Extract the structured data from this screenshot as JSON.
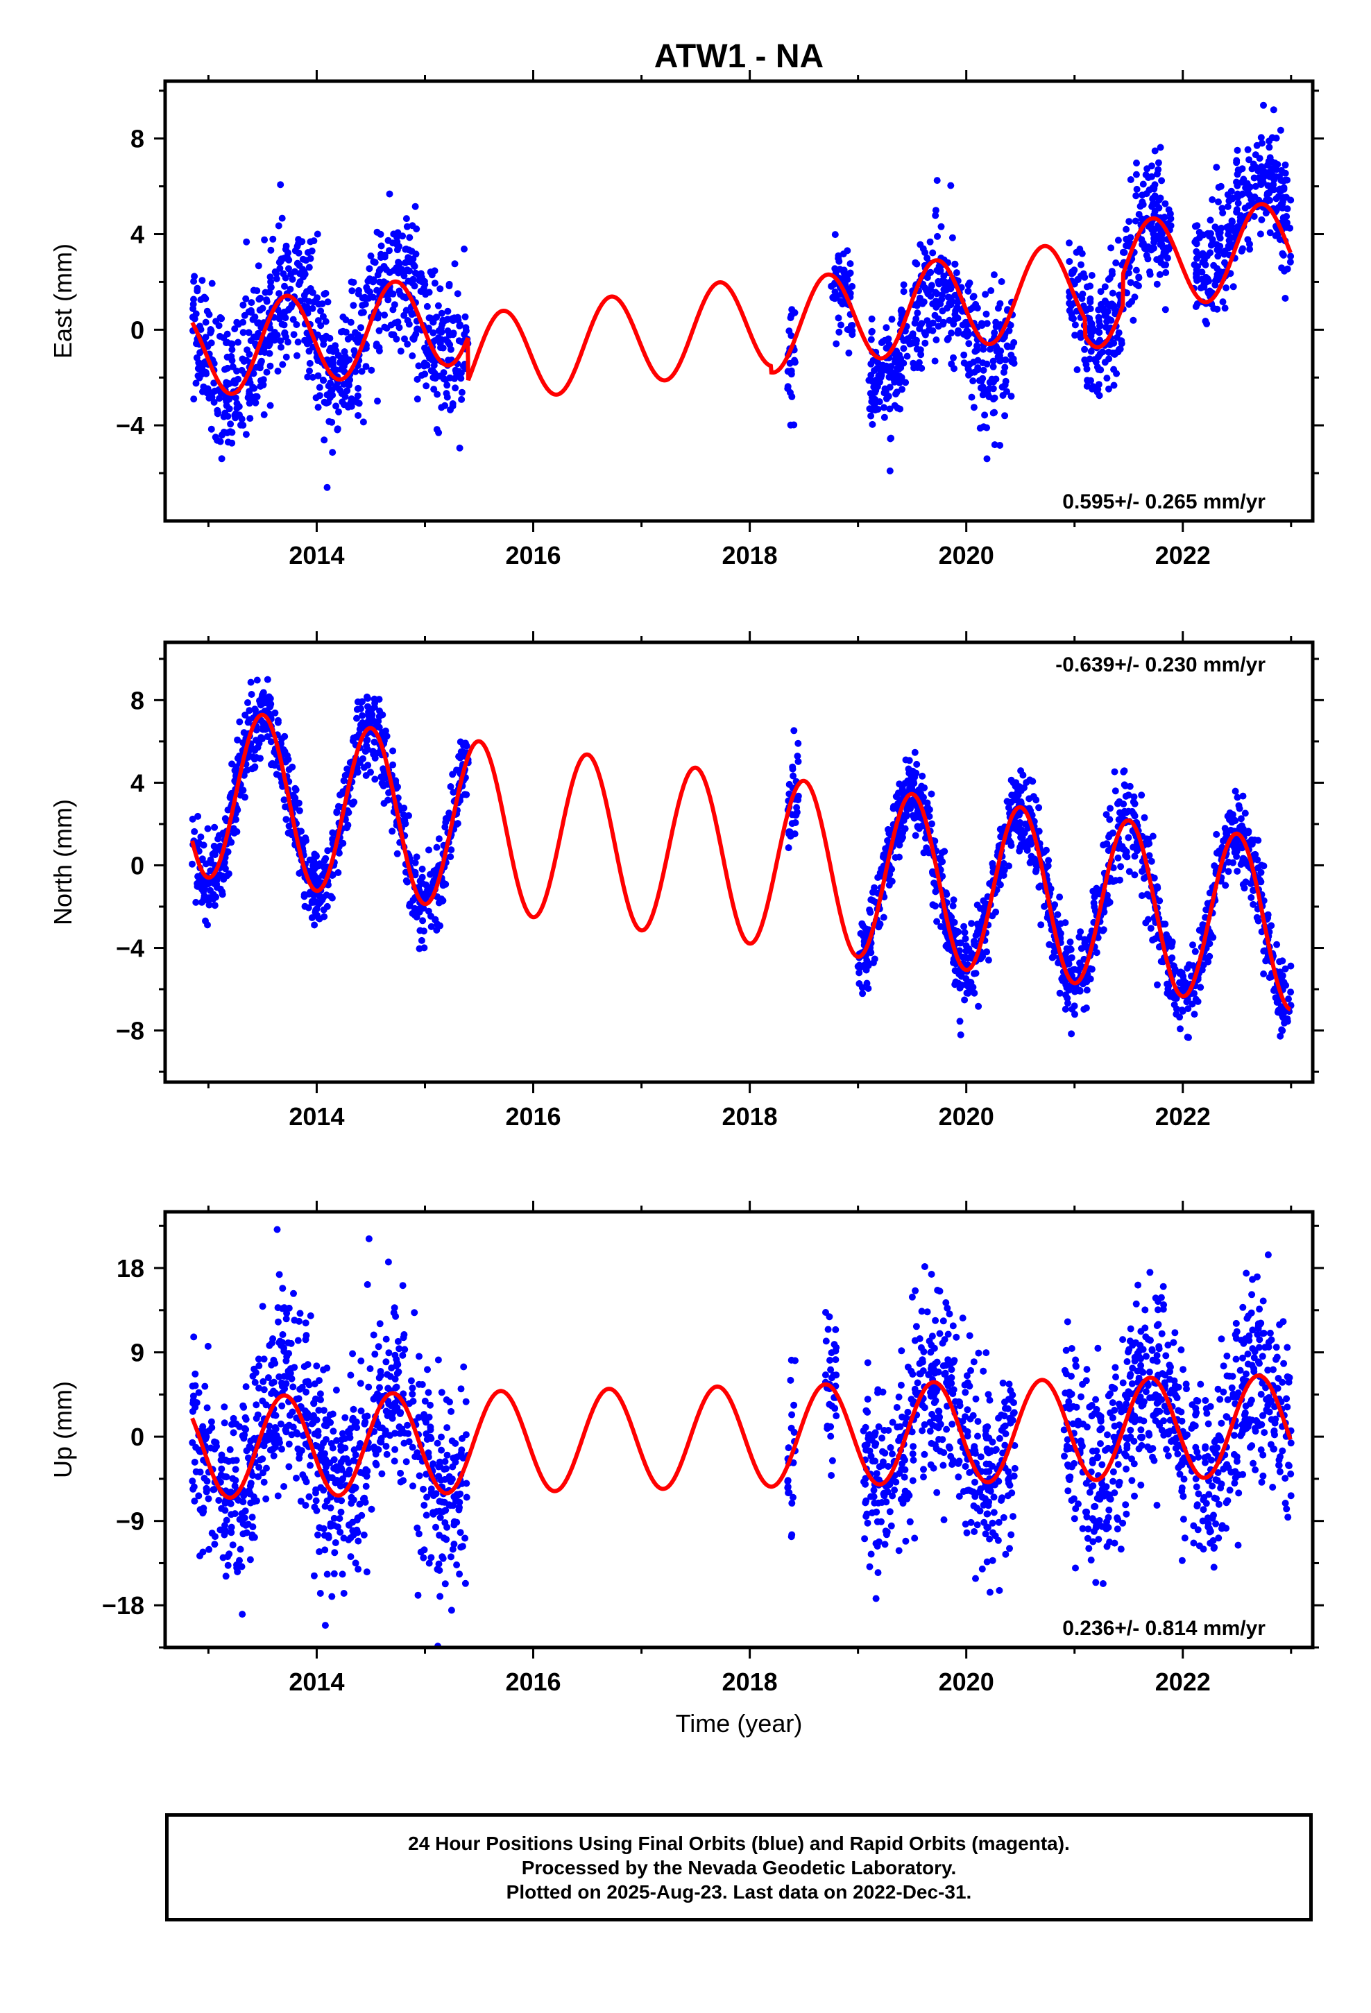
{
  "title": "ATW1 - NA",
  "xlabel": "Time (year)",
  "footer": {
    "line1": "24 Hour Positions Using Final Orbits (blue) and Rapid Orbits (magenta).",
    "line2": "Processed by the Nevada Geodetic Laboratory.",
    "line3": "Plotted on 2025-Aug-23. Last data on 2022-Dec-31."
  },
  "chart_data": [
    {
      "type": "scatter",
      "ylabel": "East (mm)",
      "rate_label": "0.595+/- 0.265 mm/yr",
      "rate_position": "bottom-right",
      "xlim": [
        2012.6,
        2023.2
      ],
      "ylim": [
        -8.0,
        10.4
      ],
      "yticks": [
        -4,
        0,
        4,
        8
      ],
      "xticks": [
        2014,
        2016,
        2018,
        2020,
        2022
      ],
      "colors": {
        "points": "#0000ff",
        "model": "#ff0000"
      },
      "model": {
        "type": "linear+seasonal",
        "rate_mm_per_yr": 0.595,
        "segments": [
          {
            "start": 2012.85,
            "end": 2015.4,
            "offset_at_start": -1.0
          },
          {
            "start": 2015.4,
            "end": 2018.2,
            "offset_at_start": -1.3
          },
          {
            "start": 2018.2,
            "end": 2021.1,
            "offset_at_start": 0.1
          },
          {
            "start": 2021.1,
            "end": 2021.45,
            "offset_at_start": 1.1
          },
          {
            "start": 2021.45,
            "end": 2023.0,
            "offset_at_start": 2.6
          }
        ],
        "annual_amplitude": 1.9,
        "annual_peak_phase": 0.72
      },
      "data_segments": [
        {
          "start": 2012.85,
          "end": 2013.1,
          "offset": -1.0,
          "noise": 1.2
        },
        {
          "start": 2013.1,
          "end": 2015.4,
          "offset": -1.4,
          "noise": 1.6
        },
        {
          "start": 2018.35,
          "end": 2018.42,
          "offset": -1.6,
          "noise": 1.2
        },
        {
          "start": 2018.75,
          "end": 2018.95,
          "offset": 2.0,
          "noise": 1.0
        },
        {
          "start": 2019.1,
          "end": 2020.45,
          "offset": 0.1,
          "noise": 1.3
        },
        {
          "start": 2020.95,
          "end": 2021.45,
          "offset": 0.0,
          "noise": 1.3
        },
        {
          "start": 2021.45,
          "end": 2021.9,
          "offset": 4.3,
          "noise": 1.2
        },
        {
          "start": 2022.1,
          "end": 2022.5,
          "offset": 5.6,
          "noise": 1.2
        },
        {
          "start": 2022.5,
          "end": 2023.0,
          "offset": 8.2,
          "noise": 1.2
        }
      ]
    },
    {
      "type": "scatter",
      "ylabel": "North (mm)",
      "rate_label": "-0.639+/- 0.230 mm/yr",
      "rate_position": "top-right",
      "xlim": [
        2012.6,
        2023.2
      ],
      "ylim": [
        -10.5,
        10.8
      ],
      "yticks": [
        -8,
        -4,
        0,
        4,
        8
      ],
      "xticks": [
        2014,
        2016,
        2018,
        2020,
        2022
      ],
      "colors": {
        "points": "#0000ff",
        "model": "#ff0000"
      },
      "model": {
        "type": "linear+seasonal",
        "rate_mm_per_yr": -0.639,
        "segments": [
          {
            "start": 2012.85,
            "end": 2023.0,
            "offset_at_start": 3.6
          }
        ],
        "annual_amplitude": 4.1,
        "annual_peak_phase": 0.5
      },
      "data_segments": [
        {
          "start": 2012.85,
          "end": 2015.4,
          "offset": 0.0,
          "noise": 1.0
        },
        {
          "start": 2018.35,
          "end": 2018.45,
          "offset": 0.0,
          "noise": 1.0
        },
        {
          "start": 2019.0,
          "end": 2023.0,
          "offset": 0.0,
          "noise": 1.0
        }
      ]
    },
    {
      "type": "scatter",
      "ylabel": "Up (mm)",
      "rate_label": "0.236+/- 0.814 mm/yr",
      "rate_position": "bottom-right",
      "xlim": [
        2012.6,
        2023.2
      ],
      "ylim": [
        -22.5,
        24.0
      ],
      "yticks": [
        -18,
        -9,
        0,
        9,
        18
      ],
      "xticks": [
        2014,
        2016,
        2018,
        2020,
        2022
      ],
      "colors": {
        "points": "#0000ff",
        "model": "#ff0000"
      },
      "model": {
        "type": "linear+seasonal",
        "rate_mm_per_yr": 0.236,
        "segments": [
          {
            "start": 2012.85,
            "end": 2023.0,
            "offset_at_start": -1.2
          }
        ],
        "annual_amplitude": 5.4,
        "annual_peak_phase": 0.7
      },
      "data_segments": [
        {
          "start": 2012.85,
          "end": 2015.4,
          "offset": 0.0,
          "noise": 5.5
        },
        {
          "start": 2018.35,
          "end": 2018.42,
          "offset": 0.0,
          "noise": 4.0
        },
        {
          "start": 2018.7,
          "end": 2018.8,
          "offset": 0.0,
          "noise": 4.0
        },
        {
          "start": 2019.05,
          "end": 2020.45,
          "offset": 0.0,
          "noise": 5.0
        },
        {
          "start": 2020.9,
          "end": 2023.0,
          "offset": 0.0,
          "noise": 5.0
        }
      ]
    }
  ]
}
